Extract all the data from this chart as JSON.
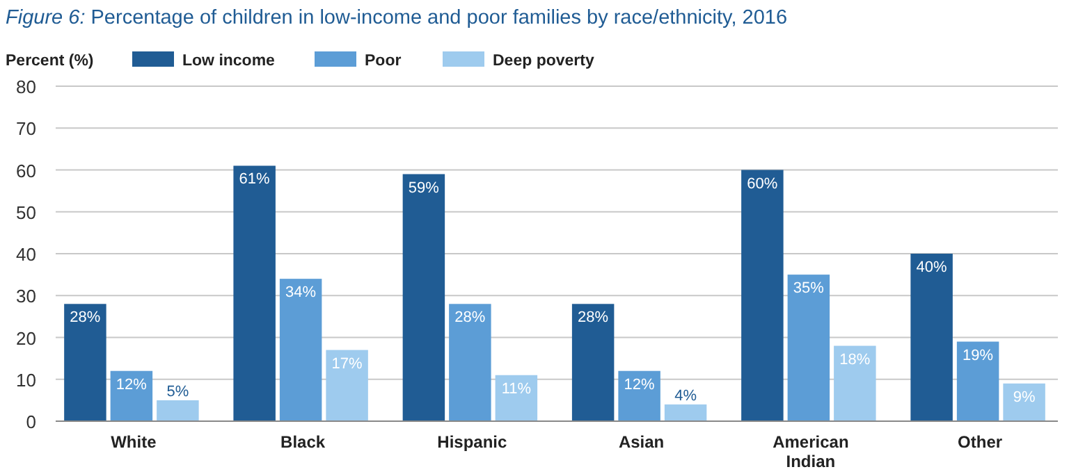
{
  "chart_data": {
    "type": "bar",
    "title": "Figure 6: Percentage of children in low-income and poor families by race/ethnicity, 2016",
    "ylabel": "Percent (%)",
    "categories": [
      "White",
      "Black",
      "Hispanic",
      "Asian",
      "American Indian",
      "Other"
    ],
    "series": [
      {
        "name": "Low income",
        "color": "#205c94",
        "values": [
          28,
          61,
          59,
          28,
          60,
          40
        ],
        "value_labels": [
          "28%",
          "61%",
          "59%",
          "28%",
          "60%",
          "40%"
        ]
      },
      {
        "name": "Poor",
        "color": "#5c9dd6",
        "values": [
          12,
          34,
          28,
          12,
          35,
          19
        ],
        "value_labels": [
          "12%",
          "34%",
          "28%",
          "12%",
          "35%",
          "19%"
        ]
      },
      {
        "name": "Deep poverty",
        "color": "#9ecbee",
        "values": [
          5,
          17,
          11,
          4,
          18,
          9
        ],
        "value_labels": [
          "5%",
          "17%",
          "11%",
          "4%",
          "18%",
          "9%"
        ]
      }
    ],
    "ylim": [
      0,
      80
    ],
    "yticks": [
      0,
      10,
      20,
      30,
      40,
      50,
      60,
      70,
      80
    ],
    "grid": "y",
    "legend": "top"
  }
}
